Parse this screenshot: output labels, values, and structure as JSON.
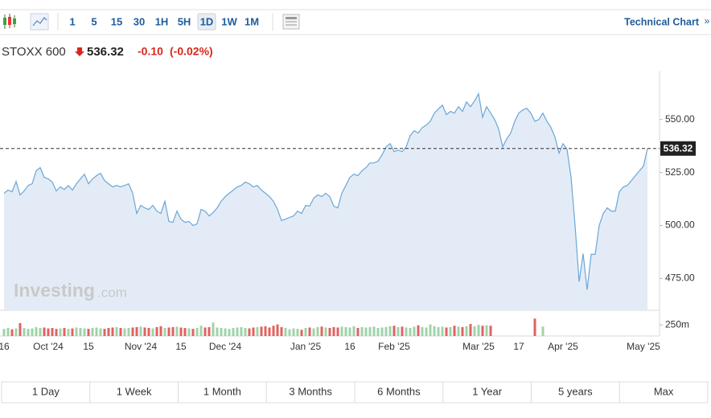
{
  "toolbar": {
    "intervals": [
      "1",
      "5",
      "15",
      "30",
      "1H",
      "5H",
      "1D",
      "1W",
      "1M"
    ],
    "active": "1D",
    "technical": "Technical Chart",
    "technical_arrow": "»"
  },
  "quote": {
    "name": "STOXX 600",
    "price": "536.32",
    "change": "-0.10",
    "change_pct": "(-0.02%)"
  },
  "watermark": {
    "brand": "Investing",
    "suffix": ".com"
  },
  "chart_data": {
    "type": "line",
    "categories": [
      "16",
      null,
      null,
      null,
      null,
      null,
      null,
      null,
      null,
      null,
      null,
      "Oct '24",
      null,
      null,
      null,
      null,
      null,
      null,
      null,
      null,
      null,
      "15",
      null,
      null,
      null,
      null,
      null,
      null,
      null,
      null,
      null,
      null,
      null,
      null,
      "Nov '24",
      null,
      null,
      null,
      null,
      null,
      null,
      null,
      null,
      null,
      "15",
      null,
      null,
      null,
      null,
      null,
      null,
      null,
      null,
      null,
      null,
      "Dec '24",
      null,
      null,
      null,
      null,
      null,
      null,
      null,
      null,
      null,
      null,
      null,
      null,
      null,
      null,
      null,
      null,
      null,
      null,
      null,
      "Jan '25",
      null,
      null,
      null,
      null,
      null,
      null,
      null,
      null,
      null,
      null,
      "16",
      null,
      null,
      null,
      null,
      null,
      null,
      null,
      null,
      null,
      null,
      "Feb '25",
      null,
      null,
      null,
      null,
      null,
      null,
      null,
      null,
      null,
      null,
      null,
      null,
      null,
      null,
      null,
      null,
      null,
      null,
      null,
      null,
      "Mar '25",
      null,
      null,
      null,
      null,
      null,
      null,
      null,
      null,
      null,
      "17",
      null,
      null,
      null,
      null,
      null,
      null,
      null,
      null,
      null,
      null,
      "Apr '25",
      null,
      null,
      null,
      null,
      null,
      null,
      null,
      null,
      null,
      null,
      null,
      null,
      null,
      null,
      null,
      null,
      null,
      null,
      null,
      "May '25",
      null
    ],
    "series": [
      {
        "color": "#6aa6d8",
        "fill": "#e3ecf6",
        "values": [
          515.2,
          516.7,
          515.9,
          520.8,
          514.4,
          516.3,
          518.9,
          519.7,
          525.8,
          527.3,
          522.7,
          522.0,
          520.5,
          516.3,
          518.2,
          517.0,
          518.9,
          516.7,
          519.7,
          522.0,
          524.2,
          519.7,
          522.0,
          523.5,
          524.6,
          521.2,
          519.7,
          518.2,
          518.9,
          518.2,
          518.9,
          519.7,
          515.2,
          505.7,
          509.5,
          508.3,
          507.6,
          509.5,
          506.8,
          505.7,
          511.4,
          501.9,
          501.5,
          506.8,
          503.0,
          501.5,
          501.9,
          500.0,
          500.8,
          507.6,
          506.8,
          504.5,
          506.1,
          508.3,
          511.4,
          513.6,
          515.2,
          516.7,
          518.2,
          518.9,
          520.5,
          519.7,
          518.2,
          518.9,
          516.7,
          515.2,
          513.6,
          511.4,
          507.6,
          502.3,
          503.0,
          503.8,
          504.5,
          506.8,
          505.7,
          509.5,
          509.1,
          512.9,
          514.4,
          513.6,
          515.2,
          513.6,
          509.1,
          508.3,
          515.2,
          518.9,
          522.7,
          524.2,
          523.5,
          525.8,
          527.3,
          529.5,
          529.5,
          530.3,
          533.3,
          537.1,
          538.6,
          534.8,
          535.6,
          534.8,
          537.1,
          542.4,
          544.7,
          543.6,
          546.2,
          547.3,
          549.2,
          553.0,
          554.9,
          556.8,
          552.3,
          553.8,
          553.0,
          556.1,
          553.8,
          558.3,
          556.1,
          558.7,
          562.1,
          551.1,
          556.1,
          553.0,
          550.0,
          545.5,
          537.1,
          540.9,
          543.6,
          549.2,
          553.0,
          554.5,
          555.3,
          553.0,
          549.2,
          550.0,
          553.0,
          549.2,
          546.2,
          541.7,
          534.1,
          538.6,
          536.0,
          522.7,
          500.0,
          473.5,
          486.7,
          469.7,
          486.4,
          486.4,
          500.0,
          505.7,
          508.3,
          506.8,
          506.8,
          515.9,
          518.2,
          518.9,
          521.2,
          523.5,
          525.8,
          528.0,
          536.32
        ]
      }
    ],
    "ylim": [
      460,
      573
    ],
    "yticks": [
      {
        "value": 475,
        "label": "475.00"
      },
      {
        "value": 500,
        "label": "500.00"
      },
      {
        "value": 525,
        "label": "525.00"
      },
      {
        "value": 550,
        "label": "550.00"
      }
    ],
    "last_price_line": true,
    "volume": {
      "up_color": "#9fd3a8",
      "down_color": "#e06262",
      "ylim": [
        0,
        540
      ],
      "yticks": [
        {
          "value": 250,
          "label": "250m"
        }
      ],
      "values": [
        160,
        180,
        150,
        170,
        290,
        180,
        160,
        170,
        200,
        180,
        190,
        170,
        180,
        160,
        170,
        180,
        160,
        170,
        190,
        180,
        170,
        160,
        180,
        190,
        170,
        160,
        180,
        190,
        200,
        180,
        170,
        180,
        190,
        200,
        210,
        190,
        180,
        170,
        200,
        220,
        180,
        190,
        200,
        210,
        190,
        180,
        170,
        160,
        180,
        230,
        190,
        200,
        300,
        190,
        180,
        170,
        160,
        180,
        190,
        200,
        180,
        170,
        190,
        200,
        210,
        220,
        190,
        230,
        260,
        200,
        180,
        150,
        170,
        160,
        140,
        180,
        190,
        170,
        200,
        210,
        190,
        180,
        200,
        190,
        210,
        200,
        190,
        220,
        180,
        200,
        190,
        200,
        210,
        180,
        190,
        200,
        220,
        230,
        200,
        210,
        190,
        180,
        210,
        240,
        200,
        190,
        260,
        220,
        200,
        210,
        190,
        200,
        230,
        210,
        200,
        220,
        270,
        220,
        250,
        230,
        240,
        230,
        null,
        null,
        null,
        null,
        null,
        null,
        null,
        null,
        null,
        null,
        390,
        null,
        210,
        null,
        null,
        null,
        null,
        null,
        null,
        null,
        null,
        null,
        null,
        null,
        null,
        null,
        null,
        null,
        null,
        null,
        null,
        null,
        null,
        null,
        null,
        null,
        null,
        null,
        null
      ]
    }
  },
  "ranges": [
    "1 Day",
    "1 Week",
    "1 Month",
    "3 Months",
    "6 Months",
    "1 Year",
    "5 years",
    "Max"
  ]
}
